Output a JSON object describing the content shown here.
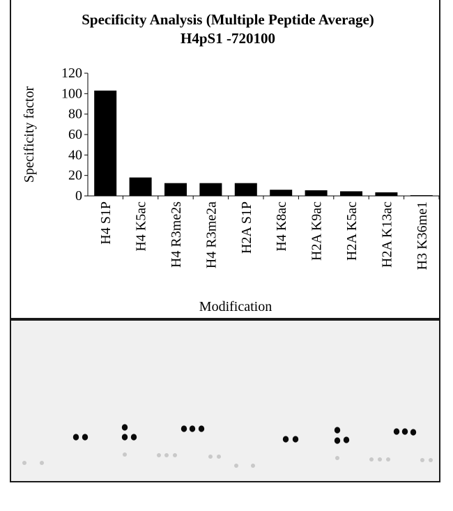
{
  "chart_data": {
    "type": "bar",
    "title": "Specificity Analysis  (Multiple Peptide Average)",
    "subtitle": "H4pS1 -720100",
    "xlabel": "Modification",
    "ylabel": "Specificity factor",
    "ylim": [
      0,
      120
    ],
    "yticks": [
      0,
      20,
      40,
      60,
      80,
      100,
      120
    ],
    "grid": false,
    "legend": "none",
    "bar_color": "#000000",
    "categories": [
      "H4 S1P",
      "H4 K5ac",
      "H4 R3me2s",
      "H4 R3me2a",
      "H2A S1P",
      "H4 K8ac",
      "H2A K9ac",
      "H2A K5ac",
      "H2A K13ac",
      "H3 K36me1"
    ],
    "values": [
      103,
      18,
      12.5,
      12.5,
      12.5,
      6,
      5.5,
      4.5,
      3.5,
      0.7
    ]
  },
  "blot": {
    "background": "#f0f0f0",
    "spot_color": "#0a0a0a",
    "faint_color": "#c9c9c9",
    "spots": [
      {
        "x": 107,
        "y": 625,
        "strength": 1
      },
      {
        "x": 120,
        "y": 625,
        "strength": 1
      },
      {
        "x": 177,
        "y": 611,
        "strength": 1
      },
      {
        "x": 177,
        "y": 625,
        "strength": 1
      },
      {
        "x": 190,
        "y": 625,
        "strength": 1
      },
      {
        "x": 262,
        "y": 613,
        "strength": 1
      },
      {
        "x": 274,
        "y": 613,
        "strength": 1
      },
      {
        "x": 287,
        "y": 613,
        "strength": 1
      },
      {
        "x": 408,
        "y": 628,
        "strength": 1
      },
      {
        "x": 422,
        "y": 628,
        "strength": 1
      },
      {
        "x": 482,
        "y": 615,
        "strength": 1
      },
      {
        "x": 482,
        "y": 630,
        "strength": 1
      },
      {
        "x": 495,
        "y": 629,
        "strength": 1
      },
      {
        "x": 567,
        "y": 617,
        "strength": 1
      },
      {
        "x": 579,
        "y": 617,
        "strength": 1
      },
      {
        "x": 591,
        "y": 618,
        "strength": 1
      },
      {
        "x": 33,
        "y": 662,
        "strength": 0
      },
      {
        "x": 58,
        "y": 662,
        "strength": 0
      },
      {
        "x": 177,
        "y": 650,
        "strength": 0
      },
      {
        "x": 226,
        "y": 651,
        "strength": 0
      },
      {
        "x": 237,
        "y": 651,
        "strength": 0
      },
      {
        "x": 249,
        "y": 651,
        "strength": 0
      },
      {
        "x": 300,
        "y": 653,
        "strength": 0
      },
      {
        "x": 312,
        "y": 653,
        "strength": 0
      },
      {
        "x": 337,
        "y": 666,
        "strength": 0
      },
      {
        "x": 361,
        "y": 666,
        "strength": 0
      },
      {
        "x": 482,
        "y": 655,
        "strength": 0
      },
      {
        "x": 531,
        "y": 657,
        "strength": 0
      },
      {
        "x": 543,
        "y": 657,
        "strength": 0
      },
      {
        "x": 555,
        "y": 657,
        "strength": 0
      },
      {
        "x": 604,
        "y": 658,
        "strength": 0
      },
      {
        "x": 616,
        "y": 658,
        "strength": 0
      }
    ]
  }
}
